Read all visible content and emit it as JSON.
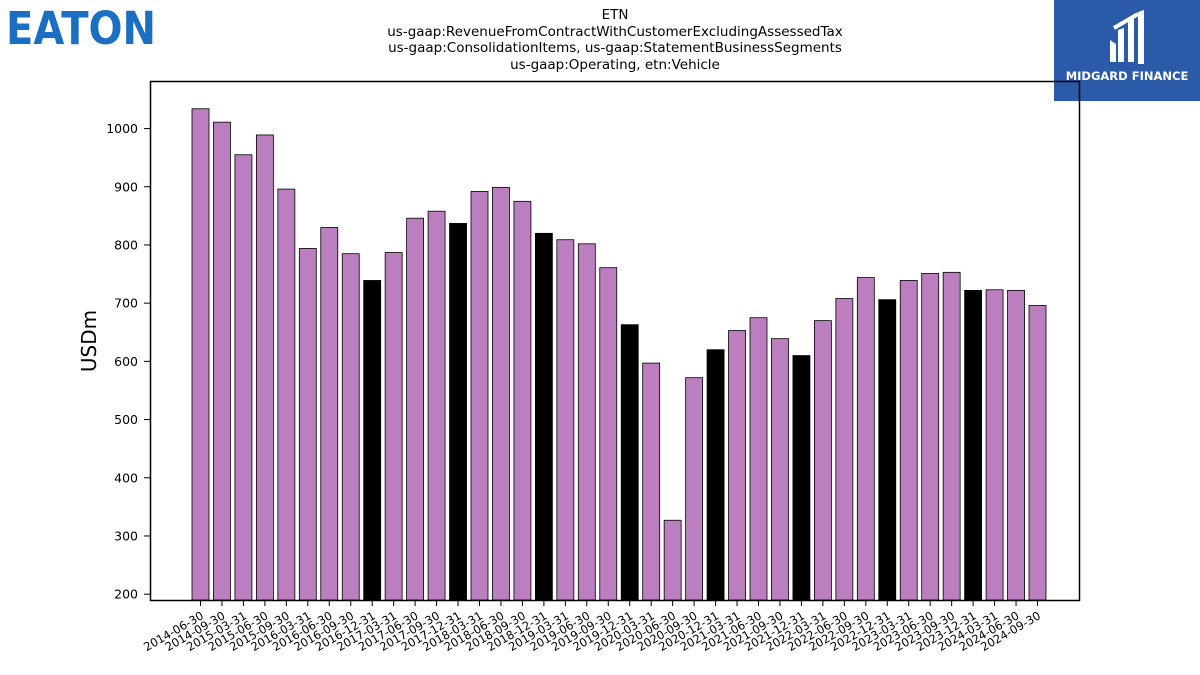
{
  "header": {
    "company_logo": "EATON",
    "title_lines": [
      "ETN",
      "us-gaap:RevenueFromContractWithCustomerExcludingAssessedTax",
      "us-gaap:ConsolidationItems, us-gaap:StatementBusinessSegments",
      "us-gaap:Operating, etn:Vehicle"
    ],
    "brand_logo": "MIDGARD FINANCE"
  },
  "colors": {
    "eaton_blue": "#1a6fc2",
    "brand_bg": "#2a5aa8",
    "bar_default": "#bb7fc0",
    "bar_highlight": "#000000"
  },
  "chart_data": {
    "type": "bar",
    "ylabel": "USDm",
    "xlabel": "",
    "ylim": [
      190,
      1080
    ],
    "yticks": [
      200,
      300,
      400,
      500,
      600,
      700,
      800,
      900,
      1000
    ],
    "grid": false,
    "categories": [
      "2014-06-30",
      "2014-09-30",
      "2015-03-31",
      "2015-06-30",
      "2015-09-30",
      "2016-03-31",
      "2016-06-30",
      "2016-09-30",
      "2016-12-31",
      "2017-03-31",
      "2017-06-30",
      "2017-09-30",
      "2017-12-31",
      "2018-03-31",
      "2018-06-30",
      "2018-09-30",
      "2018-12-31",
      "2019-03-31",
      "2019-06-30",
      "2019-09-30",
      "2019-12-31",
      "2020-03-31",
      "2020-06-30",
      "2020-09-30",
      "2020-12-31",
      "2021-03-31",
      "2021-06-30",
      "2021-09-30",
      "2021-12-31",
      "2022-03-31",
      "2022-06-30",
      "2022-09-30",
      "2022-12-31",
      "2023-03-31",
      "2023-06-30",
      "2023-09-30",
      "2023-12-31",
      "2024-03-31",
      "2024-06-30",
      "2024-09-30"
    ],
    "values": [
      1034,
      1011,
      955,
      989,
      896,
      794,
      830,
      785,
      739,
      787,
      846,
      858,
      837,
      892,
      899,
      875,
      820,
      809,
      802,
      761,
      663,
      597,
      327,
      572,
      620,
      653,
      675,
      639,
      610,
      670,
      708,
      744,
      706,
      739,
      751,
      753,
      722,
      723,
      722,
      696
    ],
    "highlight": [
      false,
      false,
      false,
      false,
      false,
      false,
      false,
      false,
      true,
      false,
      false,
      false,
      true,
      false,
      false,
      false,
      true,
      false,
      false,
      false,
      true,
      false,
      false,
      false,
      true,
      false,
      false,
      false,
      true,
      false,
      false,
      false,
      true,
      false,
      false,
      false,
      true,
      false,
      false,
      false
    ]
  }
}
